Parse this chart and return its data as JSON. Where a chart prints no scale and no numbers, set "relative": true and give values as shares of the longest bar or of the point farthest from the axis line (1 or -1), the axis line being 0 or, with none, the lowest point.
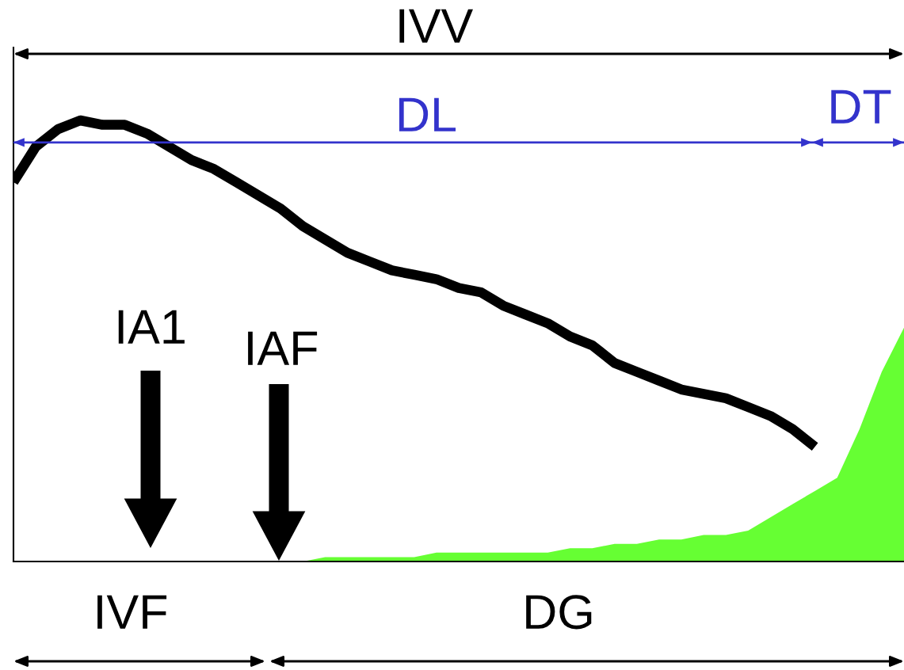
{
  "chart_data": {
    "type": "line",
    "relative": true,
    "legend": false,
    "marker": "none",
    "line_style": "solid",
    "categories": [
      null,
      null,
      null,
      null,
      null,
      null,
      null,
      null,
      null,
      null,
      null,
      null,
      null,
      null,
      null,
      null,
      null,
      null,
      null,
      null,
      null,
      null,
      null,
      null,
      null,
      null,
      null,
      null,
      null,
      null,
      null,
      null,
      null,
      null,
      null,
      null,
      null,
      null,
      null,
      null,
      null
    ],
    "series": [
      {
        "color": "#000000",
        "values": [
          0.86,
          0.94,
          0.98,
          1.0,
          0.99,
          0.99,
          0.97,
          0.94,
          0.91,
          0.89,
          0.86,
          0.83,
          0.8,
          0.76,
          0.73,
          0.7,
          0.68,
          0.66,
          0.65,
          0.64,
          0.62,
          0.61,
          0.58,
          0.56,
          0.54,
          0.51,
          0.49,
          0.45,
          0.43,
          0.41,
          0.39,
          0.38,
          0.37,
          0.35,
          0.33,
          0.3,
          0.26,
          null,
          null,
          null,
          null
        ]
      },
      {
        "type": "area",
        "color": "#66ff33",
        "values": [
          null,
          null,
          null,
          null,
          null,
          null,
          null,
          null,
          null,
          null,
          null,
          null,
          0.0,
          0.0,
          0.01,
          0.01,
          0.01,
          0.01,
          0.01,
          0.02,
          0.02,
          0.02,
          0.02,
          0.02,
          0.02,
          0.03,
          0.03,
          0.04,
          0.04,
          0.05,
          0.05,
          0.06,
          0.06,
          0.07,
          0.1,
          0.13,
          0.16,
          0.19,
          0.3,
          0.43,
          0.53
        ]
      }
    ],
    "ref_lines": [
      {
        "axis": "y",
        "value": 0.95,
        "color": "#3333cc",
        "line_style": "solid"
      }
    ],
    "annotations": [
      "IVV",
      "DL",
      "DT",
      "IA1",
      "IAF",
      "IVF",
      "DG"
    ]
  }
}
